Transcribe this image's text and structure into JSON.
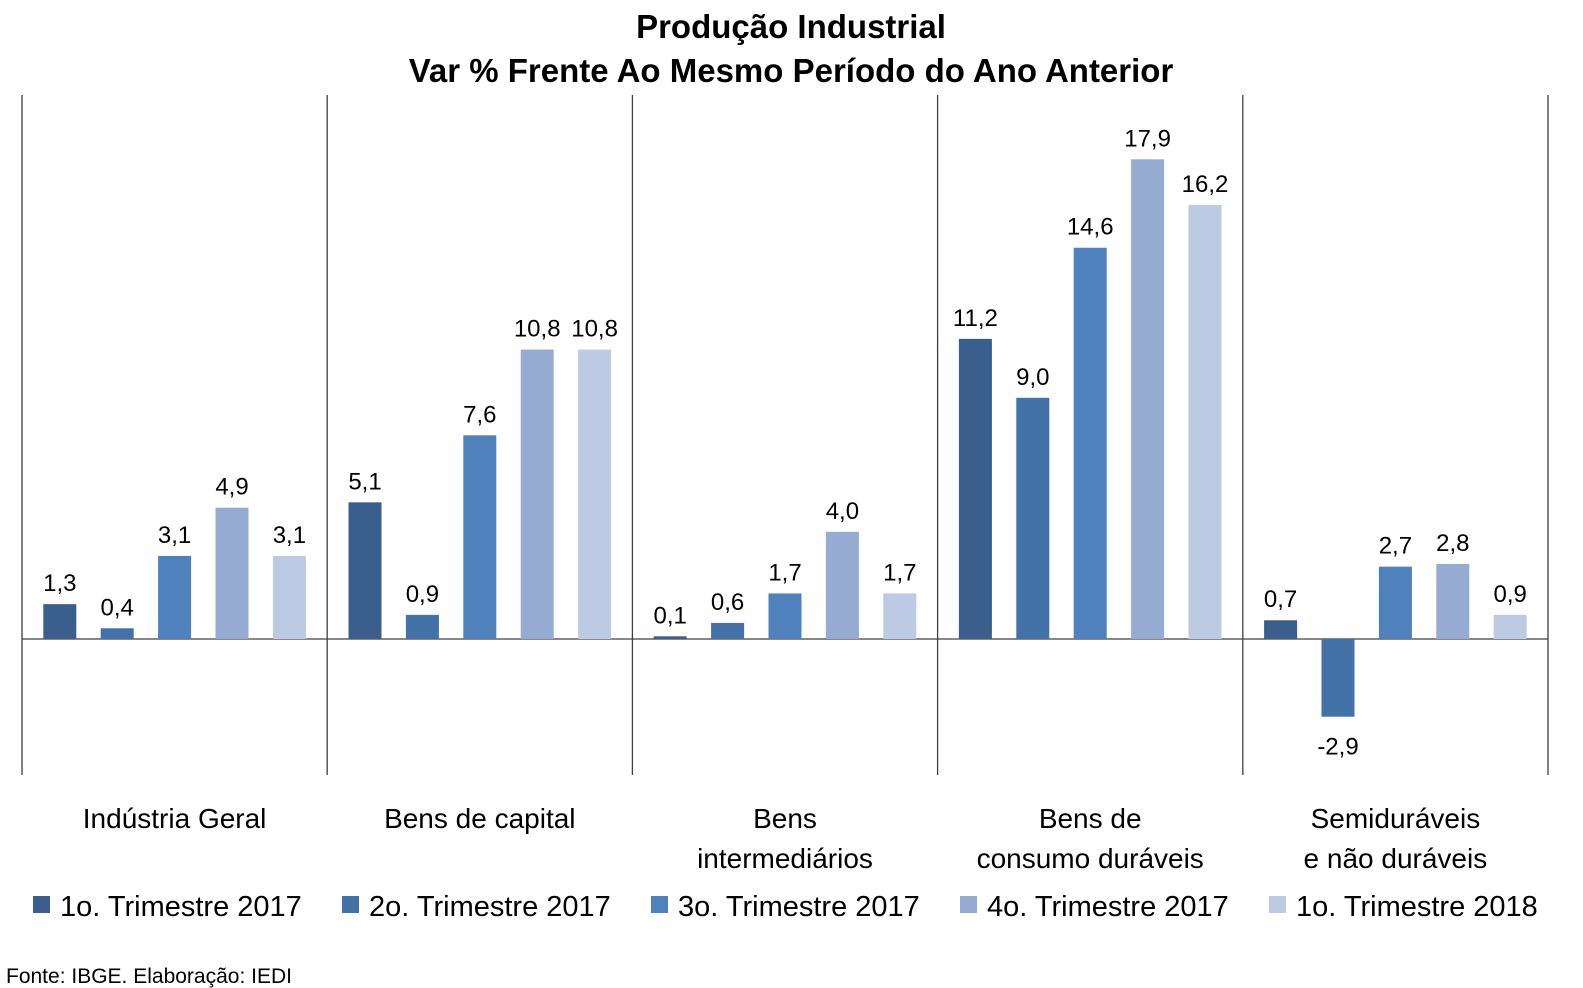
{
  "chart_data": {
    "type": "bar",
    "title": [
      "Produção Industrial",
      "Var % Frente Ao Mesmo Período do Ano Anterior"
    ],
    "categories": [
      [
        "Indústria Geral"
      ],
      [
        "Bens de capital"
      ],
      [
        "Bens",
        "intermediários"
      ],
      [
        "Bens de",
        "consumo duráveis"
      ],
      [
        "Semiduráveis",
        "e não duráveis"
      ]
    ],
    "series": [
      {
        "name": "1o. Trimestre 2017",
        "color": "#3a5f8c",
        "values": [
          1.3,
          5.1,
          0.1,
          11.2,
          0.7
        ],
        "labels": [
          "1,3",
          "5,1",
          "0,1",
          "11,2",
          "0,7"
        ]
      },
      {
        "name": "2o. Trimestre 2017",
        "color": "#4372a8",
        "values": [
          0.4,
          0.9,
          0.6,
          9.0,
          -2.9
        ],
        "labels": [
          "0,4",
          "0,9",
          "0,6",
          "9,0",
          "-2,9"
        ]
      },
      {
        "name": "3o. Trimestre 2017",
        "color": "#4f81bd",
        "values": [
          3.1,
          7.6,
          1.7,
          14.6,
          2.7
        ],
        "labels": [
          "3,1",
          "7,6",
          "1,7",
          "14,6",
          "2,7"
        ]
      },
      {
        "name": "4o. Trimestre 2017",
        "color": "#95abd1",
        "values": [
          4.9,
          10.8,
          4.0,
          17.9,
          2.8
        ],
        "labels": [
          "4,9",
          "10,8",
          "4,0",
          "17,9",
          "2,8"
        ]
      },
      {
        "name": "1o. Trimestre 2018",
        "color": "#bccae3",
        "values": [
          3.1,
          10.8,
          1.7,
          16.2,
          0.9
        ],
        "labels": [
          "3,1",
          "10,8",
          "1,7",
          "16,2",
          "0,9"
        ]
      }
    ],
    "ylim": [
      -5.0,
      20.3
    ],
    "grid": false,
    "legend_position": "bottom"
  },
  "source": "Fonte: IBGE. Elaboração: IEDI"
}
